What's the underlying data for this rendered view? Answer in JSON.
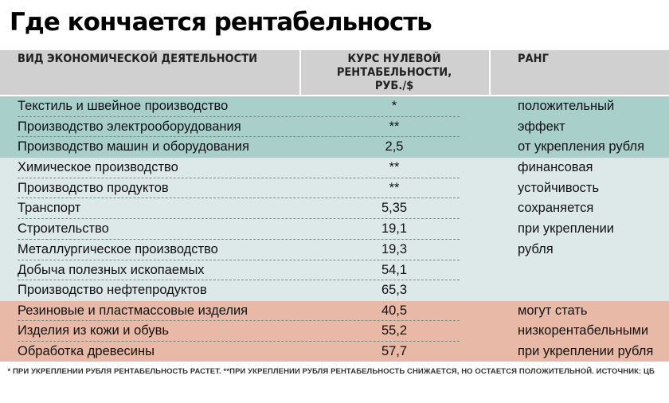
{
  "title": "Где кончается рентабельность",
  "headers": {
    "activity": "ВИД ЭКОНОМИЧЕСКОЙ ДЕЯТЕЛЬНОСТИ",
    "rate_line1": "КУРС НУЛЕВОЙ",
    "rate_line2": "РЕНТАБЕЛЬНОСТИ,",
    "rate_line3": "РУБ./$",
    "rank": "РАНГ"
  },
  "rows": [
    {
      "name": "Текстиль и швейное производство",
      "value": "*",
      "rank": "положительный"
    },
    {
      "name": "Производство электрооборудования",
      "value": "**",
      "rank": "эффект"
    },
    {
      "name": "Производство машин и оборудования",
      "value": "2,5",
      "rank": "от укрепления рубля"
    },
    {
      "name": "Химическое производство",
      "value": "**",
      "rank": "финансовая"
    },
    {
      "name": "Производство продуктов",
      "value": "**",
      "rank": "устойчивость"
    },
    {
      "name": "Транспорт",
      "value": "5,35",
      "rank": "сохраняется"
    },
    {
      "name": "Строительство",
      "value": "19,1",
      "rank": "при укреплении"
    },
    {
      "name": "Металлургическое производство",
      "value": "19,3",
      "rank": "рубля"
    },
    {
      "name": "Добыча полезных ископаемых",
      "value": "54,1",
      "rank": ""
    },
    {
      "name": "Производство нефтепродуктов",
      "value": "65,3",
      "rank": ""
    },
    {
      "name": "Резиновые и пластмассовые изделия",
      "value": "40,5",
      "rank": "могут стать"
    },
    {
      "name": "Изделия из кожи и обувь",
      "value": "55,2",
      "rank": "низкорентабельными"
    },
    {
      "name": "Обработка древесины",
      "value": "57,7",
      "rank": "при укреплении рубля"
    }
  ],
  "footnote": "* При укреплении рубля рентабельность растет.  **При укреплении рубля рентабельность снижается, но остается положительной. Источник: ЦБ",
  "colors": {
    "header_bg": "#d0d0d0",
    "group_positive": "#a9cfcb",
    "group_stable": "#dde9e8",
    "group_low": "#e9b9a7"
  }
}
